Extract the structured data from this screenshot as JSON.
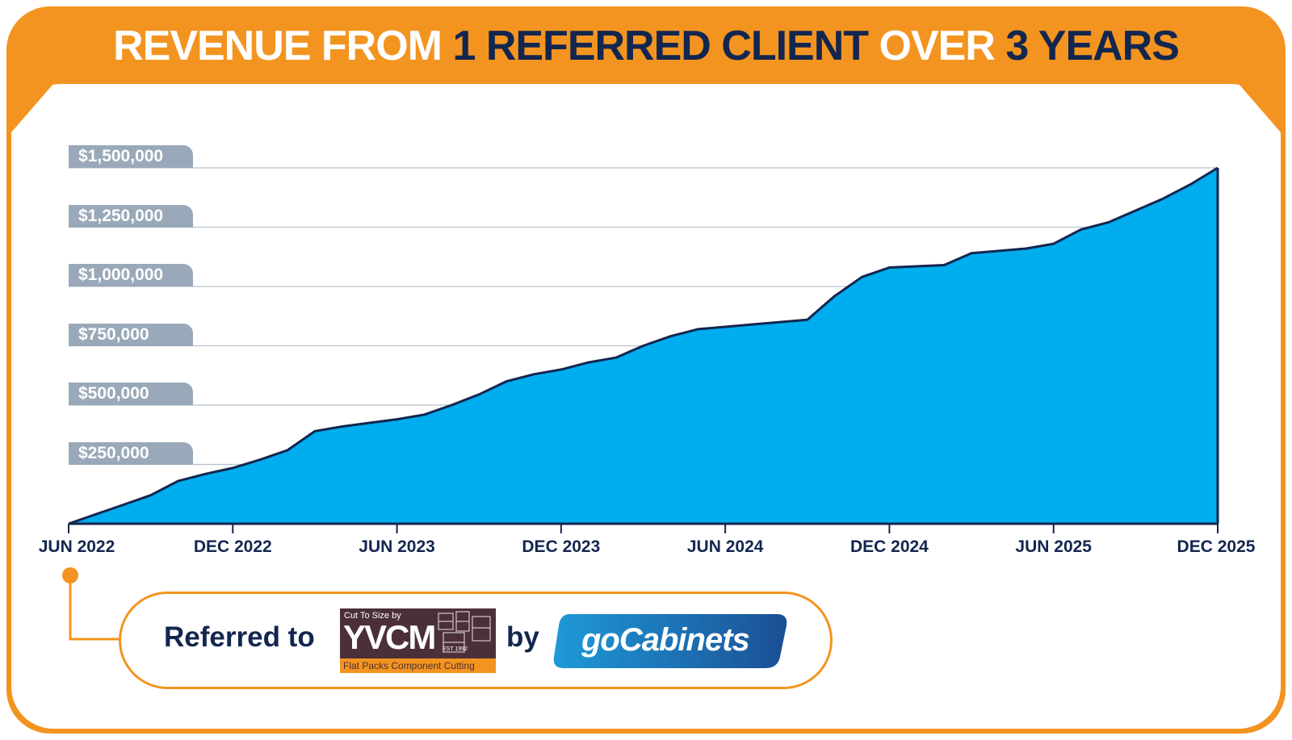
{
  "title": {
    "part1": "REVENUE FROM ",
    "part2": "1 REFERRED CLIENT",
    "part3": " OVER ",
    "part4": "3 YEARS"
  },
  "colors": {
    "frame_orange": "#f39420",
    "navy": "#13264f",
    "area_fill": "#00adee",
    "label_gray": "#9aa9b9"
  },
  "chart_data": {
    "type": "area",
    "title": "REVENUE FROM 1 REFERRED CLIENT OVER 3 YEARS",
    "xlabel": "",
    "ylabel": "",
    "x_ticks": [
      "JUN 2022",
      "DEC 2022",
      "JUN 2023",
      "DEC 2023",
      "JUN 2024",
      "DEC 2024",
      "JUN 2025",
      "DEC 2025"
    ],
    "y_ticks": [
      "$250,000",
      "$500,000",
      "$750,000",
      "$1,000,000",
      "$1,250,000",
      "$1,500,000"
    ],
    "y_tick_values": [
      250000,
      500000,
      750000,
      1000000,
      1250000,
      1500000
    ],
    "ylim": [
      0,
      1500000
    ],
    "xlim": [
      "2022-06",
      "2025-12"
    ],
    "grid": true,
    "series": [
      {
        "x": [
          "2022-06",
          "2022-07",
          "2022-08",
          "2022-09",
          "2022-10",
          "2022-11",
          "2022-12",
          "2023-01",
          "2023-02",
          "2023-03",
          "2023-04",
          "2023-05",
          "2023-06",
          "2023-07",
          "2023-08",
          "2023-09",
          "2023-10",
          "2023-11",
          "2023-12",
          "2024-01",
          "2024-02",
          "2024-03",
          "2024-04",
          "2024-05",
          "2024-06",
          "2024-07",
          "2024-08",
          "2024-09",
          "2024-10",
          "2024-11",
          "2024-12",
          "2025-01",
          "2025-02",
          "2025-03",
          "2025-04",
          "2025-05",
          "2025-06",
          "2025-07",
          "2025-08",
          "2025-09",
          "2025-10",
          "2025-11",
          "2025-12"
        ],
        "values": [
          0,
          40000,
          80000,
          120000,
          180000,
          210000,
          235000,
          270000,
          310000,
          390000,
          410000,
          425000,
          440000,
          460000,
          500000,
          545000,
          600000,
          630000,
          650000,
          680000,
          700000,
          750000,
          790000,
          820000,
          830000,
          840000,
          850000,
          860000,
          960000,
          1040000,
          1080000,
          1085000,
          1090000,
          1140000,
          1150000,
          1160000,
          1180000,
          1240000,
          1270000,
          1320000,
          1370000,
          1430000,
          1500000
        ]
      }
    ]
  },
  "callout": {
    "referred_to": "Referred to",
    "by": "by"
  },
  "yvcm_logo": {
    "top_line": "Cut To Size by",
    "name": "YVCM",
    "est": "EST 1992",
    "bottom_line": "Flat Packs  Component Cutting"
  },
  "gocabinets_logo": {
    "name": "goCabinets"
  }
}
